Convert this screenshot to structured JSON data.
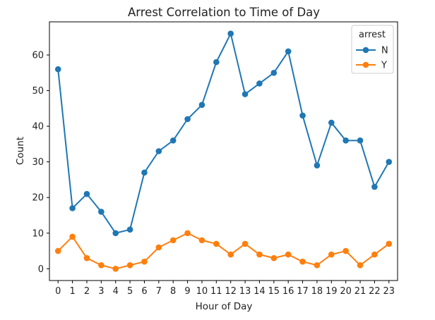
{
  "chart_data": {
    "type": "line",
    "title": "Arrest Correlation to Time of Day",
    "xlabel": "Hour of Day",
    "ylabel": "Count",
    "x": [
      0,
      1,
      2,
      3,
      4,
      5,
      6,
      7,
      8,
      9,
      10,
      11,
      12,
      13,
      14,
      15,
      16,
      17,
      18,
      19,
      20,
      21,
      22,
      23
    ],
    "x_tick_labels": [
      "0",
      "1",
      "2",
      "3",
      "4",
      "5",
      "6",
      "7",
      "8",
      "9",
      "10",
      "11",
      "12",
      "13",
      "14",
      "15",
      "16",
      "17",
      "18",
      "19",
      "20",
      "21",
      "22",
      "23"
    ],
    "y_ticks": [
      0,
      10,
      20,
      30,
      40,
      50,
      60
    ],
    "y_tick_labels": [
      "0",
      "10",
      "20",
      "30",
      "40",
      "50",
      "60"
    ],
    "ylim": [
      -3.3,
      69.3
    ],
    "xlim": [
      -0.6,
      23.6
    ],
    "grid": false,
    "legend": {
      "title": "arrest",
      "position": "top-right"
    },
    "series": [
      {
        "name": "N",
        "color": "#1f77b4",
        "marker": "circle",
        "values": [
          56,
          17,
          21,
          16,
          10,
          11,
          27,
          33,
          36,
          42,
          46,
          58,
          66,
          49,
          52,
          55,
          61,
          43,
          29,
          41,
          36,
          36,
          23,
          30
        ]
      },
      {
        "name": "Y",
        "color": "#ff7f0e",
        "marker": "circle",
        "values": [
          5,
          9,
          3,
          1,
          0,
          1,
          2,
          6,
          8,
          10,
          8,
          7,
          4,
          7,
          4,
          3,
          4,
          2,
          1,
          4,
          5,
          1,
          4,
          7
        ]
      }
    ]
  }
}
